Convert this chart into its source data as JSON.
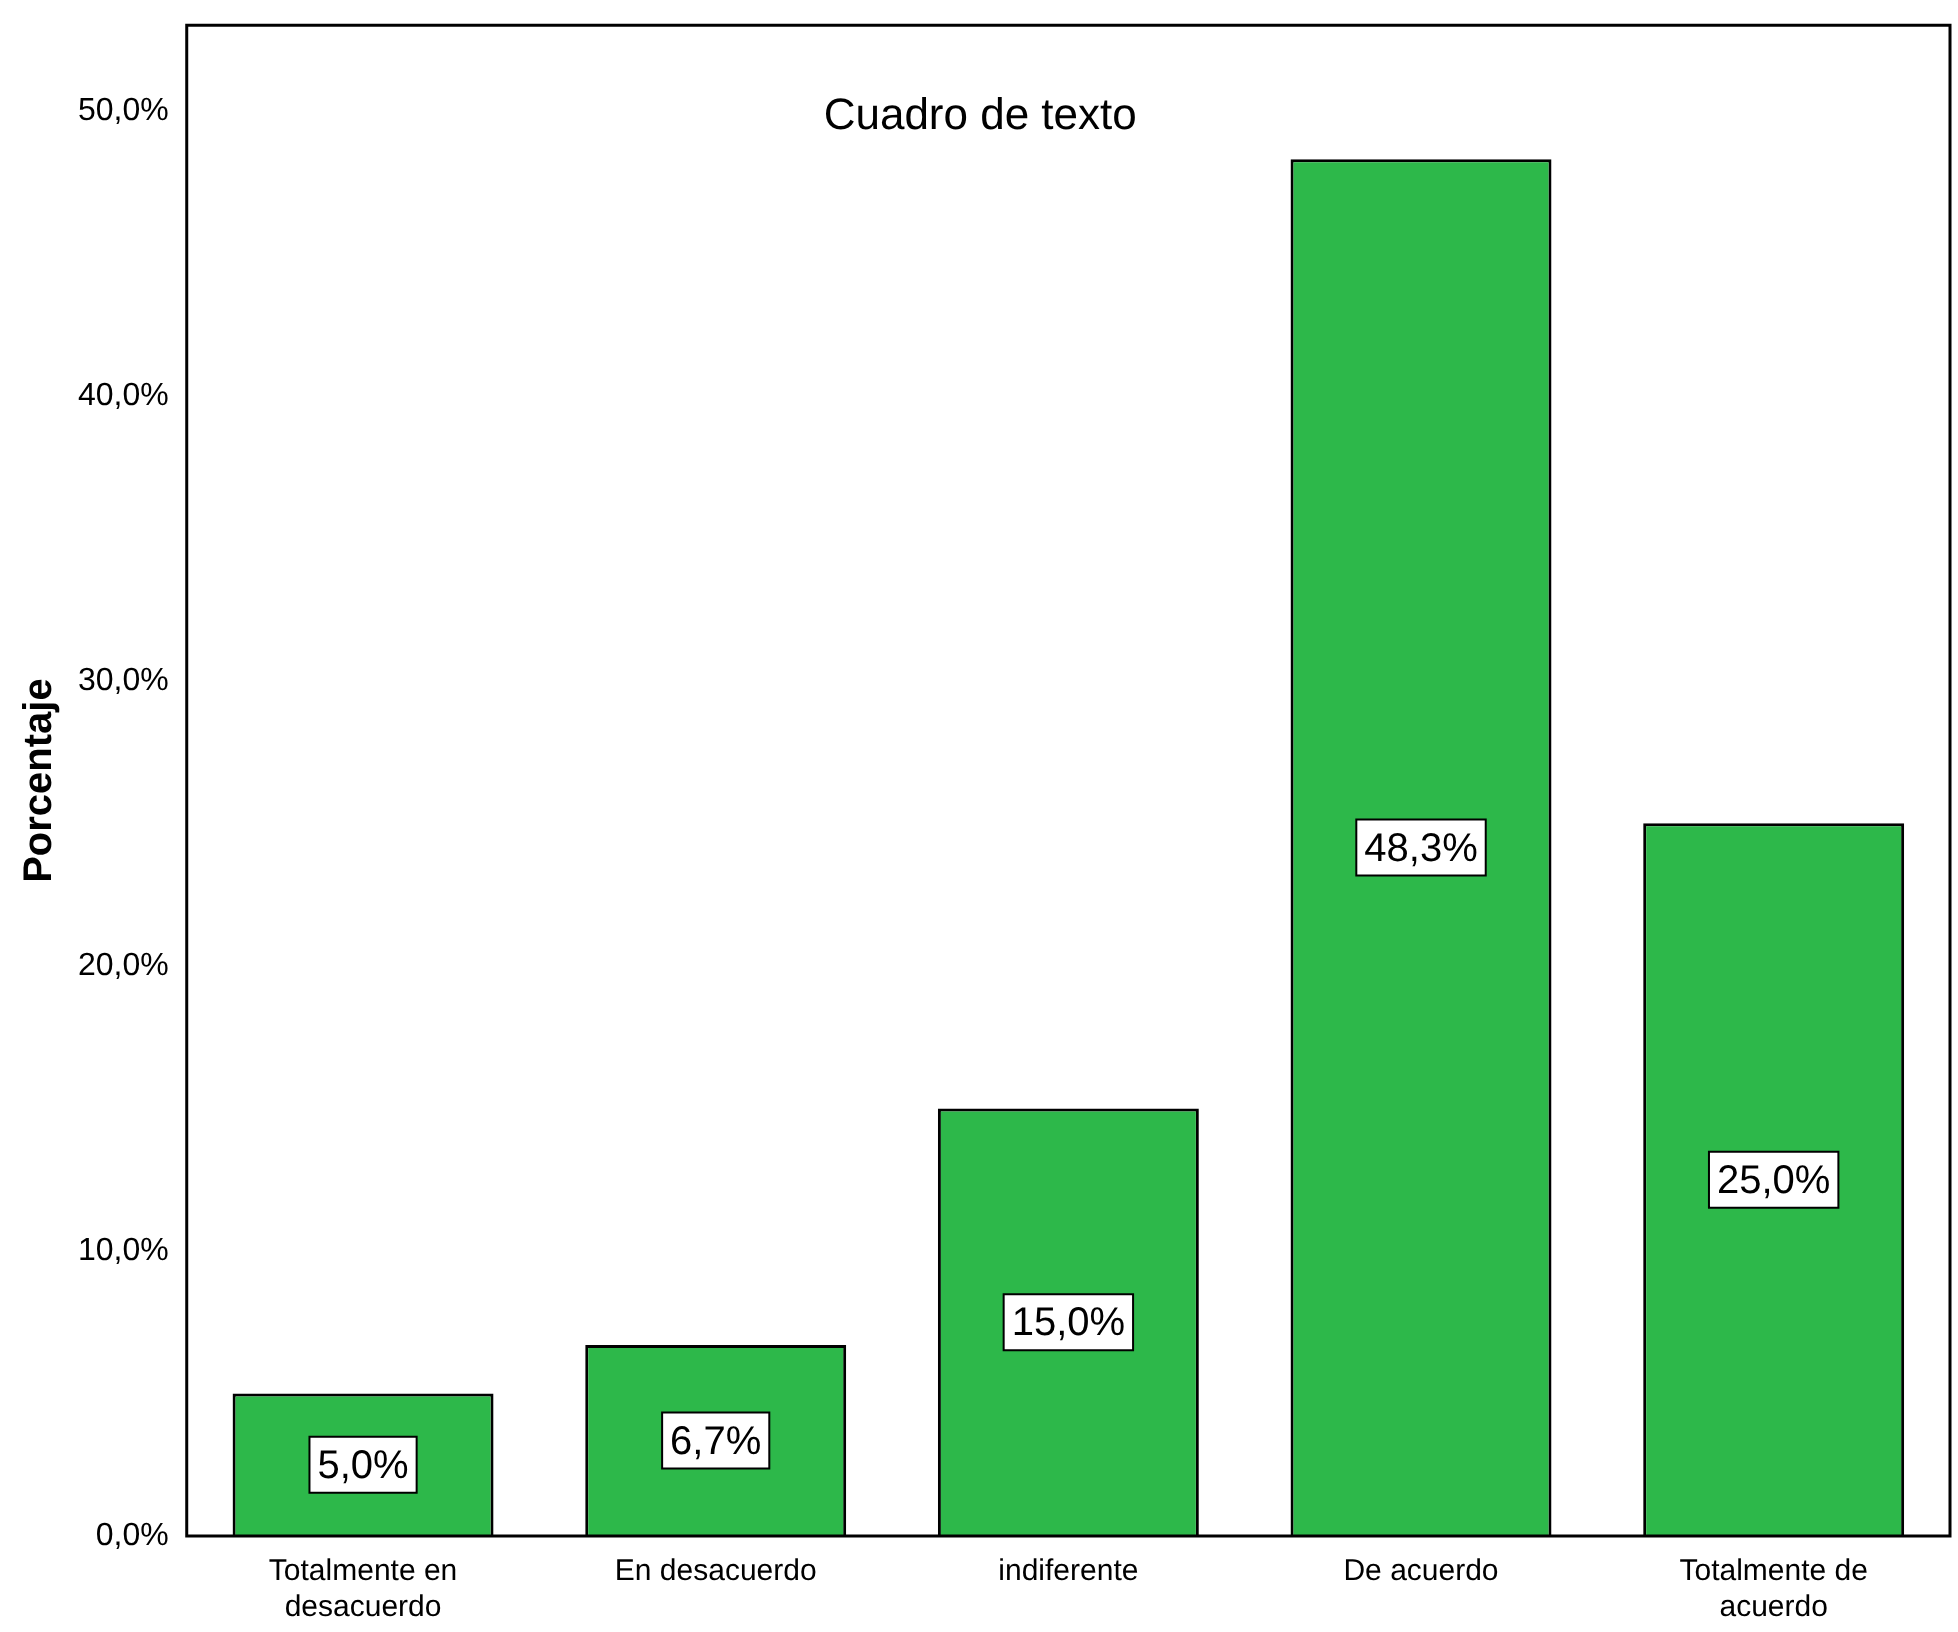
{
  "chart_data": {
    "type": "bar",
    "ylabel": "Porcentaje",
    "annotations": [
      "Cuadro de texto"
    ],
    "categories": [
      "Totalmente en desacuerdo",
      "En desacuerdo",
      "indiferente",
      "De acuerdo",
      "Totalmente de acuerdo"
    ],
    "values": [
      5.0,
      6.7,
      15.0,
      48.3,
      25.0
    ],
    "value_labels": [
      "5,0%",
      "6,7%",
      "15,0%",
      "48,3%",
      "25,0%"
    ],
    "color": "#2db84a",
    "ylim": [
      0,
      53
    ],
    "yticks": [
      {
        "value": 0,
        "label": "0,0%"
      },
      {
        "value": 10,
        "label": "10,0%"
      },
      {
        "value": 20,
        "label": "20,0%"
      },
      {
        "value": 30,
        "label": "30,0%"
      },
      {
        "value": 40,
        "label": "40,0%"
      },
      {
        "value": 50,
        "label": "50,0%"
      }
    ],
    "grid": false,
    "legend": false
  }
}
